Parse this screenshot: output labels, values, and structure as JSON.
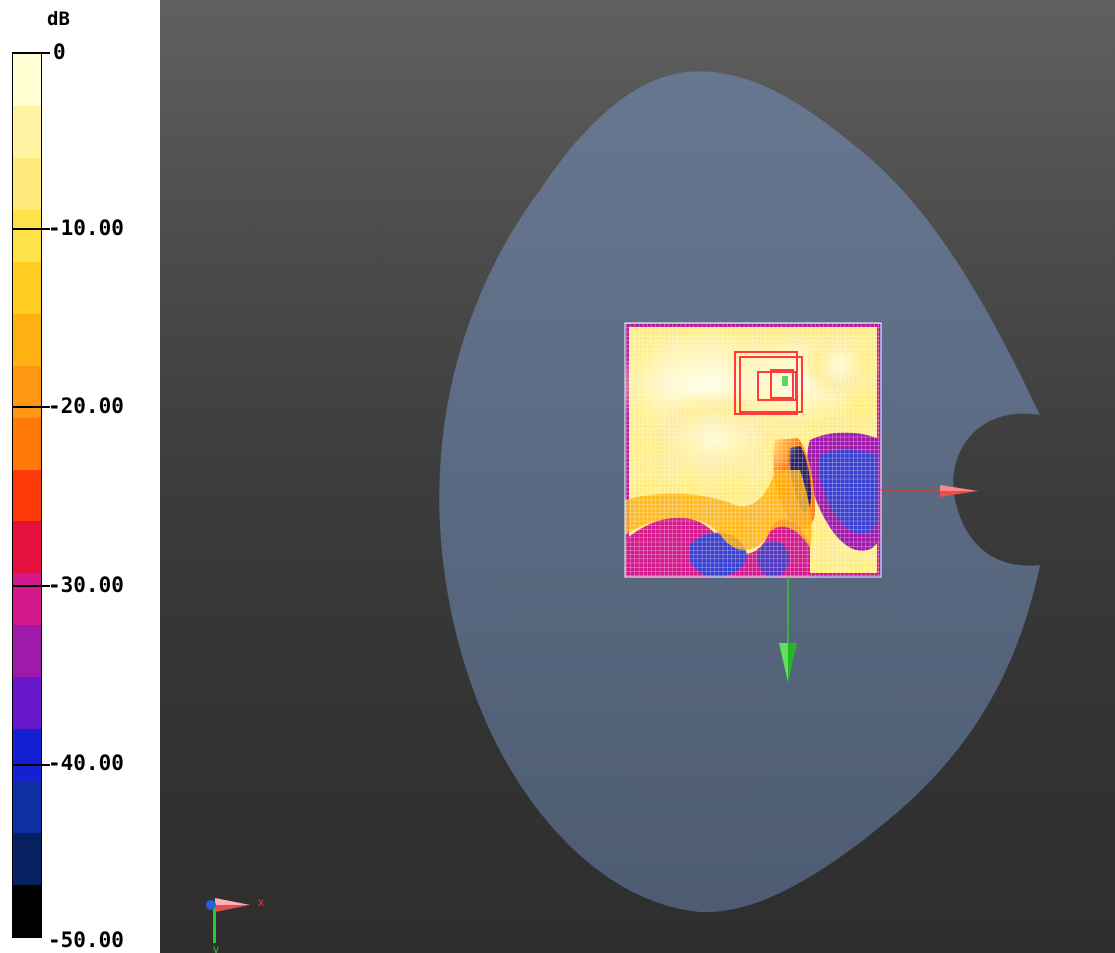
{
  "legend": {
    "unit": "dB",
    "labels": [
      "0",
      "-10.00",
      "-20.00",
      "-30.00",
      "-40.00",
      "-50.00"
    ],
    "range": [
      -50,
      0
    ],
    "bands": [
      "#ffffd2",
      "#fff2a0",
      "#ffe97a",
      "#ffe14a",
      "#ffcc22",
      "#ffb012",
      "#ff9614",
      "#ff7a0a",
      "#ff3a0a",
      "#e6103c",
      "#d21a8c",
      "#a01aaa",
      "#6818c8",
      "#1420d2",
      "#0c30a0",
      "#062060",
      "#000000"
    ]
  },
  "viewport": {
    "background_top": "#606060",
    "background_bottom": "#2e2e2e",
    "phantom_color": "#5c6b82",
    "grid_line_color": "#ffffff",
    "probe_box_color": "#ff3c3c",
    "axis_x_color": "#d23c3c",
    "axis_y_color": "#2ec82e",
    "axis_z_color": "#1e64dc"
  },
  "orientation_triad": {
    "x_label": "x",
    "y_label": "y"
  }
}
